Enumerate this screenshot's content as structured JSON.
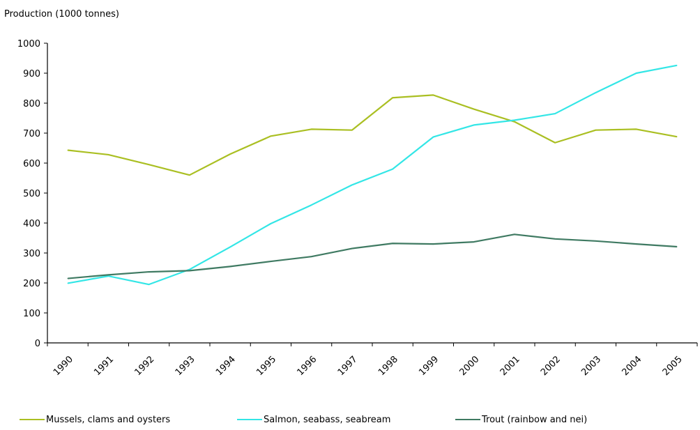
{
  "chart_data": {
    "type": "line",
    "ylabel": "Production (1000 tonnes)",
    "xlabel": "",
    "categories": [
      "1990",
      "1991",
      "1992",
      "1993",
      "1994",
      "1995",
      "1996",
      "1997",
      "1998",
      "1999",
      "2000",
      "2001",
      "2002",
      "2003",
      "2004",
      "2005"
    ],
    "ylim": [
      0,
      1000
    ],
    "yticks": [
      0,
      100,
      200,
      300,
      400,
      500,
      600,
      700,
      800,
      900,
      1000
    ],
    "grid": false,
    "legend_position": "bottom",
    "series": [
      {
        "name": "Mussels, clams and oysters",
        "color": "#aabf22",
        "values": [
          643,
          628,
          595,
          560,
          630,
          690,
          713,
          710,
          818,
          827,
          780,
          738,
          668,
          710,
          713,
          688
        ]
      },
      {
        "name": "Salmon, seabass, seabream",
        "color": "#33e6e6",
        "values": [
          199,
          223,
          195,
          245,
          320,
          398,
          460,
          527,
          580,
          687,
          727,
          743,
          765,
          835,
          900,
          926
        ]
      },
      {
        "name": "Trout (rainbow and nei)",
        "color": "#3f7a62",
        "values": [
          215,
          227,
          237,
          241,
          255,
          272,
          288,
          315,
          332,
          330,
          337,
          362,
          347,
          340,
          330,
          321
        ]
      }
    ]
  }
}
